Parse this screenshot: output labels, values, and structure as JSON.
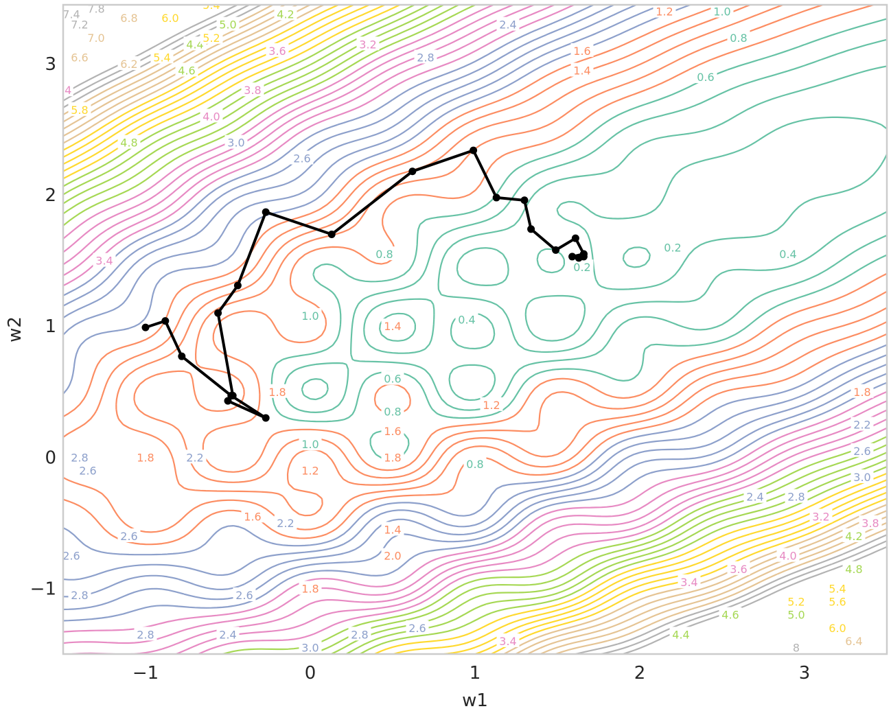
{
  "chart_data": {
    "type": "contour",
    "title": "",
    "xlabel": "w1",
    "ylabel": "w2",
    "xlim": [
      -1.5,
      3.5
    ],
    "ylim": [
      -1.5,
      3.45
    ],
    "xticks": [
      -1,
      0,
      1,
      2,
      3
    ],
    "xtick_labels": [
      "−1",
      "0",
      "1",
      "2",
      "3"
    ],
    "yticks": [
      -1,
      0,
      1,
      2,
      3
    ],
    "ytick_labels": [
      "−1",
      "0",
      "1",
      "2",
      "3"
    ],
    "grid": false,
    "contour_levels": [
      0.2,
      0.4,
      0.6,
      0.8,
      1.0,
      1.2,
      1.4,
      1.6,
      1.8,
      2.0,
      2.2,
      2.4,
      2.6,
      2.8,
      3.0,
      3.2,
      3.4,
      3.6,
      3.8,
      4.0,
      4.2,
      4.4,
      4.6,
      4.8,
      5.0,
      5.2,
      5.4,
      5.6,
      5.8,
      6.0,
      6.2,
      6.4,
      6.6,
      6.8,
      7.0,
      7.2,
      7.4,
      7.6
    ],
    "level_colors": [
      {
        "max": 1.0,
        "color": "#66c2a5"
      },
      {
        "max": 2.0,
        "color": "#fc8d62"
      },
      {
        "max": 3.0,
        "color": "#8da0cb"
      },
      {
        "max": 4.0,
        "color": "#e78ac3"
      },
      {
        "max": 5.0,
        "color": "#a6d854"
      },
      {
        "max": 6.0,
        "color": "#ffd92f"
      },
      {
        "max": 7.0,
        "color": "#e5c494"
      },
      {
        "max": 99,
        "color": "#b3b3b3"
      }
    ],
    "contour_labels": [
      {
        "x": 2.4,
        "y": 2.9,
        "text": "0.6"
      },
      {
        "x": 2.6,
        "y": 3.2,
        "text": "0.8"
      },
      {
        "x": 2.5,
        "y": 3.4,
        "text": "1.0"
      },
      {
        "x": 2.2,
        "y": 1.6,
        "text": "0.2"
      },
      {
        "x": 2.9,
        "y": 1.55,
        "text": "0.4"
      },
      {
        "x": 1.65,
        "y": 1.45,
        "text": "0.2"
      },
      {
        "x": 0.45,
        "y": 1.55,
        "text": "0.8"
      },
      {
        "x": 0.0,
        "y": 1.08,
        "text": "1.0"
      },
      {
        "x": 0.5,
        "y": 0.6,
        "text": "0.6"
      },
      {
        "x": 0.5,
        "y": 0.35,
        "text": "0.8"
      },
      {
        "x": 0.95,
        "y": 1.05,
        "text": "0.4"
      },
      {
        "x": 0.0,
        "y": 0.1,
        "text": "1.0"
      },
      {
        "x": 1.0,
        "y": -0.05,
        "text": "0.8"
      },
      {
        "x": 0.5,
        "y": 1.0,
        "text": "1.4"
      },
      {
        "x": -0.2,
        "y": 0.5,
        "text": "1.8"
      },
      {
        "x": 1.1,
        "y": 0.4,
        "text": "1.2"
      },
      {
        "x": 0.5,
        "y": 0.2,
        "text": "1.6"
      },
      {
        "x": 0.5,
        "y": 0.0,
        "text": "1.8"
      },
      {
        "x": 0.0,
        "y": -0.1,
        "text": "1.2"
      },
      {
        "x": -1.0,
        "y": 0.0,
        "text": "1.8"
      },
      {
        "x": -0.35,
        "y": -0.45,
        "text": "1.6"
      },
      {
        "x": 0.5,
        "y": -0.55,
        "text": "1.4"
      },
      {
        "x": 0.5,
        "y": -0.75,
        "text": "2.0"
      },
      {
        "x": 0.0,
        "y": -1.0,
        "text": "1.8"
      },
      {
        "x": -0.7,
        "y": 0.0,
        "text": "2.2"
      },
      {
        "x": -0.15,
        "y": -0.5,
        "text": "2.2"
      },
      {
        "x": -1.4,
        "y": 0.0,
        "text": "2.8"
      },
      {
        "x": -1.35,
        "y": -0.1,
        "text": "2.6"
      },
      {
        "x": -1.1,
        "y": -0.6,
        "text": "2.6"
      },
      {
        "x": -1.45,
        "y": -0.75,
        "text": "2.6"
      },
      {
        "x": -1.4,
        "y": -1.05,
        "text": "2.8"
      },
      {
        "x": -0.4,
        "y": -1.05,
        "text": "2.6"
      },
      {
        "x": -1.0,
        "y": -1.35,
        "text": "2.8"
      },
      {
        "x": -0.5,
        "y": -1.35,
        "text": "2.4"
      },
      {
        "x": 0.0,
        "y": -1.45,
        "text": "3.0"
      },
      {
        "x": 0.3,
        "y": -1.35,
        "text": "2.8"
      },
      {
        "x": 0.65,
        "y": -1.3,
        "text": "2.6"
      },
      {
        "x": 1.2,
        "y": -1.4,
        "text": "3.4"
      },
      {
        "x": 1.2,
        "y": 3.3,
        "text": "2.4"
      },
      {
        "x": 0.7,
        "y": 3.05,
        "text": "2.8"
      },
      {
        "x": 0.35,
        "y": 3.15,
        "text": "3.2"
      },
      {
        "x": -0.2,
        "y": 3.1,
        "text": "3.6"
      },
      {
        "x": -0.35,
        "y": 2.8,
        "text": "3.8"
      },
      {
        "x": -0.6,
        "y": 2.6,
        "text": "4.0"
      },
      {
        "x": -0.45,
        "y": 2.4,
        "text": "3.0"
      },
      {
        "x": -0.05,
        "y": 2.28,
        "text": "2.6"
      },
      {
        "x": 1.65,
        "y": 3.1,
        "text": "1.6"
      },
      {
        "x": 1.65,
        "y": 2.95,
        "text": "1.4"
      },
      {
        "x": 2.15,
        "y": 3.4,
        "text": "1.2"
      },
      {
        "x": -1.25,
        "y": 1.5,
        "text": "3.4"
      },
      {
        "x": -1.1,
        "y": 2.4,
        "text": "4.8"
      },
      {
        "x": -0.7,
        "y": 3.15,
        "text": "4.4"
      },
      {
        "x": -0.5,
        "y": 3.3,
        "text": "5.0"
      },
      {
        "x": -0.15,
        "y": 3.38,
        "text": "4.2"
      },
      {
        "x": -0.6,
        "y": 3.45,
        "text": "5.4"
      },
      {
        "x": -0.75,
        "y": 2.95,
        "text": "4.6"
      },
      {
        "x": -0.9,
        "y": 3.05,
        "text": "5.4"
      },
      {
        "x": -1.4,
        "y": 2.65,
        "text": "5.8"
      },
      {
        "x": -1.1,
        "y": 3.0,
        "text": "6.2"
      },
      {
        "x": -0.6,
        "y": 3.2,
        "text": "5.2"
      },
      {
        "x": -0.85,
        "y": 3.35,
        "text": "6.0"
      },
      {
        "x": -1.1,
        "y": 3.35,
        "text": "6.8"
      },
      {
        "x": -1.4,
        "y": 3.05,
        "text": "6.6"
      },
      {
        "x": -1.3,
        "y": 3.2,
        "text": "7.0"
      },
      {
        "x": -1.4,
        "y": 3.3,
        "text": "7.2"
      },
      {
        "x": -1.45,
        "y": 3.38,
        "text": "7.4"
      },
      {
        "x": -1.3,
        "y": 3.42,
        "text": "7.8"
      },
      {
        "x": -1.47,
        "y": 2.8,
        "text": "4"
      },
      {
        "x": 3.35,
        "y": 0.5,
        "text": "1.8"
      },
      {
        "x": 3.35,
        "y": 0.25,
        "text": "2.2"
      },
      {
        "x": 3.35,
        "y": 0.05,
        "text": "2.6"
      },
      {
        "x": 3.35,
        "y": -0.15,
        "text": "3.0"
      },
      {
        "x": 2.7,
        "y": -0.3,
        "text": "2.4"
      },
      {
        "x": 2.95,
        "y": -0.3,
        "text": "2.8"
      },
      {
        "x": 3.1,
        "y": -0.45,
        "text": "3.2"
      },
      {
        "x": 3.4,
        "y": -0.5,
        "text": "3.8"
      },
      {
        "x": 2.9,
        "y": -0.75,
        "text": "4.0"
      },
      {
        "x": 2.6,
        "y": -0.85,
        "text": "3.6"
      },
      {
        "x": 2.3,
        "y": -0.95,
        "text": "3.4"
      },
      {
        "x": 3.3,
        "y": -0.6,
        "text": "4.2"
      },
      {
        "x": 3.3,
        "y": -0.85,
        "text": "4.8"
      },
      {
        "x": 2.55,
        "y": -1.2,
        "text": "4.6"
      },
      {
        "x": 2.25,
        "y": -1.35,
        "text": "4.4"
      },
      {
        "x": 2.95,
        "y": -1.2,
        "text": "5.0"
      },
      {
        "x": 2.95,
        "y": -1.1,
        "text": "5.2"
      },
      {
        "x": 3.2,
        "y": -1.0,
        "text": "5.4"
      },
      {
        "x": 3.2,
        "y": -1.1,
        "text": "5.6"
      },
      {
        "x": 3.2,
        "y": -1.3,
        "text": "6.0"
      },
      {
        "x": 3.3,
        "y": -1.4,
        "text": "6.4"
      },
      {
        "x": 2.95,
        "y": -1.45,
        "text": "8"
      }
    ],
    "optimizer_path": {
      "x": [
        -1.0,
        -0.88,
        -0.78,
        -0.48,
        -0.27,
        -0.5,
        -0.47,
        -0.56,
        -0.44,
        -0.27,
        0.13,
        0.62,
        0.99,
        1.13,
        1.3,
        1.34,
        1.49,
        1.61,
        1.66,
        1.66,
        1.63,
        1.59,
        1.66
      ],
      "y": [
        0.99,
        1.04,
        0.77,
        0.47,
        0.3,
        0.43,
        0.47,
        1.1,
        1.31,
        1.87,
        1.7,
        2.18,
        2.34,
        1.98,
        1.96,
        1.74,
        1.58,
        1.67,
        1.55,
        1.53,
        1.52,
        1.53,
        1.55
      ]
    }
  }
}
